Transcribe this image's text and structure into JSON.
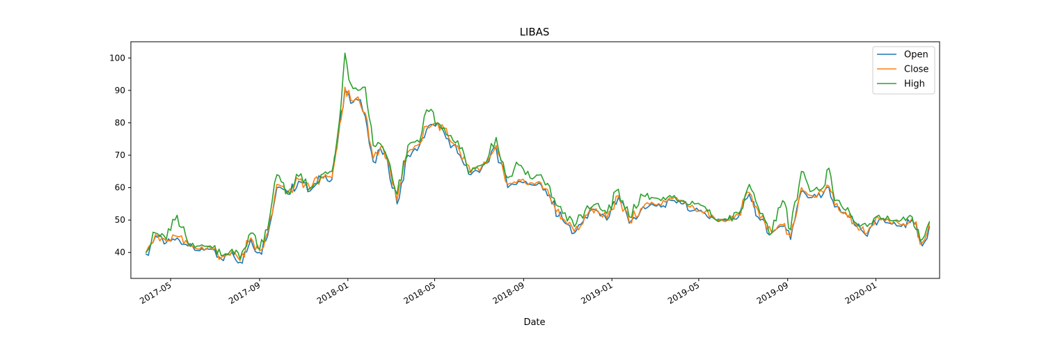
{
  "chart_data": {
    "type": "line",
    "title": "LIBAS",
    "xlabel": "Date",
    "ylabel": "",
    "xlim": [
      "2017-03-07",
      "2020-03-29"
    ],
    "ylim": [
      32,
      105
    ],
    "x_ticks": [
      "2017-05",
      "2017-09",
      "2018-01",
      "2018-05",
      "2018-09",
      "2019-01",
      "2019-05",
      "2019-09",
      "2020-01"
    ],
    "y_ticks": [
      40,
      50,
      60,
      70,
      80,
      90,
      100
    ],
    "grid": false,
    "legend_position": "top-right",
    "x": [
      "2017-03-28",
      "2017-04-10",
      "2017-04-25",
      "2017-05-10",
      "2017-05-25",
      "2017-06-10",
      "2017-06-25",
      "2017-07-10",
      "2017-07-25",
      "2017-08-05",
      "2017-08-20",
      "2017-09-01",
      "2017-09-12",
      "2017-09-25",
      "2017-10-10",
      "2017-10-25",
      "2017-11-10",
      "2017-11-25",
      "2017-12-10",
      "2017-12-20",
      "2017-12-28",
      "2018-01-05",
      "2018-01-15",
      "2018-01-25",
      "2018-02-05",
      "2018-02-15",
      "2018-02-25",
      "2018-03-10",
      "2018-03-25",
      "2018-04-10",
      "2018-04-20",
      "2018-05-05",
      "2018-05-20",
      "2018-06-05",
      "2018-06-20",
      "2018-07-05",
      "2018-07-15",
      "2018-07-25",
      "2018-08-10",
      "2018-08-25",
      "2018-09-10",
      "2018-09-25",
      "2018-10-10",
      "2018-10-25",
      "2018-11-10",
      "2018-11-25",
      "2018-12-10",
      "2018-12-25",
      "2019-01-10",
      "2019-01-25",
      "2019-02-10",
      "2019-02-25",
      "2019-03-10",
      "2019-03-25",
      "2019-04-10",
      "2019-04-25",
      "2019-05-10",
      "2019-05-25",
      "2019-06-10",
      "2019-06-25",
      "2019-07-10",
      "2019-07-25",
      "2019-08-10",
      "2019-08-25",
      "2019-09-05",
      "2019-09-20",
      "2019-10-05",
      "2019-10-20",
      "2019-10-28",
      "2019-11-05",
      "2019-11-20",
      "2019-12-05",
      "2019-12-20",
      "2020-01-05",
      "2020-01-20",
      "2020-02-05",
      "2020-02-20",
      "2020-03-05",
      "2020-03-15"
    ],
    "series": [
      {
        "name": "Open",
        "color": "#1f77b4",
        "values": [
          39.5,
          45,
          43,
          44.5,
          42,
          40.5,
          41,
          38,
          40,
          37,
          44,
          40,
          45,
          60,
          58,
          62,
          59,
          63,
          62.5,
          78,
          90,
          86,
          87,
          82,
          68,
          72,
          68,
          55,
          70,
          73,
          78,
          80,
          75,
          70,
          64,
          66,
          68,
          72,
          60,
          62,
          61,
          61,
          55,
          50,
          46,
          51,
          53,
          50,
          57,
          49,
          53,
          55,
          54,
          56,
          55,
          53,
          52,
          50,
          50,
          51,
          58,
          50,
          46,
          48,
          44,
          59,
          57,
          58,
          60,
          54,
          52,
          48,
          45,
          50,
          49,
          48,
          50,
          42,
          48
        ]
      },
      {
        "name": "Close",
        "color": "#ff7f0e",
        "values": [
          40,
          45.5,
          43.5,
          45,
          42.5,
          41,
          41.5,
          38.5,
          40.5,
          37.5,
          44.5,
          40.5,
          46,
          61,
          58.5,
          62.5,
          59.5,
          63.5,
          63,
          79,
          91,
          87,
          88,
          83,
          69,
          72.5,
          68.5,
          56,
          71,
          73.5,
          79,
          80,
          75.5,
          71,
          64.5,
          66.5,
          69,
          73,
          61,
          62.5,
          61.5,
          61.5,
          55.5,
          50.5,
          46.5,
          51.5,
          53.5,
          50.5,
          57.5,
          49.5,
          53.5,
          55.5,
          54.5,
          56.5,
          55.5,
          53.5,
          52.5,
          50,
          50,
          51.5,
          58.5,
          50.5,
          46,
          48.5,
          45,
          60,
          57.5,
          58.5,
          60.5,
          54.5,
          52.5,
          48.5,
          46,
          50.5,
          49.5,
          48.5,
          50.5,
          43,
          49
        ]
      },
      {
        "name": "High",
        "color": "#2ca02c",
        "values": [
          40,
          46,
          44,
          51.5,
          43,
          42,
          42,
          39,
          41,
          38,
          46,
          41,
          47,
          64,
          59,
          63.5,
          60,
          64,
          65,
          80,
          101.5,
          92,
          90,
          91,
          73,
          73.5,
          69,
          58,
          73,
          74,
          84,
          80,
          76,
          72,
          65,
          67,
          70,
          75.5,
          63,
          67,
          63,
          64,
          57,
          52,
          48,
          53,
          55,
          52,
          59.5,
          51,
          58,
          57,
          56,
          57,
          56,
          55,
          54,
          50,
          50,
          52,
          61,
          52,
          46,
          56,
          47,
          65,
          59,
          60,
          66,
          56,
          53,
          49,
          48,
          51.5,
          50,
          50,
          51,
          44,
          49.5
        ]
      }
    ]
  }
}
